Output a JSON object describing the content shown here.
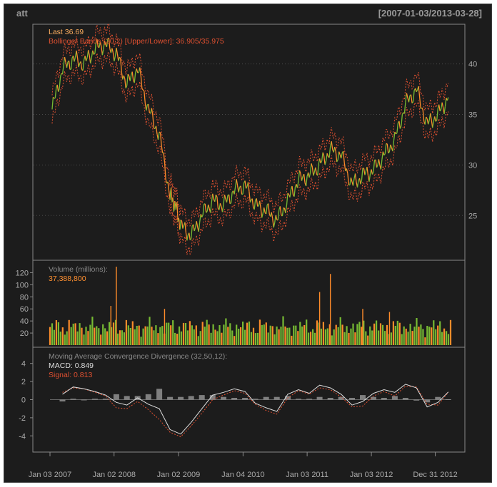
{
  "chart_data": {
    "type": "line",
    "title": "att",
    "date_range": "[2007-01-03/2013-03-28]",
    "x_ticks": [
      "Jan 03 2007",
      "Jan 02 2008",
      "Jan 02 2009",
      "Jan 04 2010",
      "Jan 03 2011",
      "Jan 03 2012",
      "Dec 31 2012"
    ],
    "price_panel": {
      "last_text": "Last 36.69",
      "bb_text": "Bollinger Bands (20,2) [Upper/Lower]: 36.905/35.975",
      "ylim": [
        21,
        43.5
      ],
      "y_ticks": [
        "25",
        "30",
        "35",
        "40"
      ],
      "grid": true,
      "series": [
        {
          "name": "Last",
          "dates": [
            "2007-01",
            "2007-03",
            "2007-05",
            "2007-07",
            "2007-09",
            "2007-11",
            "2008-01",
            "2008-03",
            "2008-05",
            "2008-07",
            "2008-09",
            "2008-11",
            "2008-12",
            "2009-01",
            "2009-03",
            "2009-05",
            "2009-07",
            "2009-09",
            "2009-11",
            "2010-01",
            "2010-03",
            "2010-05",
            "2010-07",
            "2010-09",
            "2010-11",
            "2011-01",
            "2011-03",
            "2011-05",
            "2011-07",
            "2011-09",
            "2011-11",
            "2012-01",
            "2012-03",
            "2012-05",
            "2012-07",
            "2012-09",
            "2012-11",
            "2013-01",
            "2013-03"
          ],
          "values": [
            35.5,
            39.5,
            40.5,
            40.0,
            41.5,
            42.0,
            41.0,
            38.0,
            39.5,
            35.5,
            33.0,
            27.0,
            26.0,
            24.0,
            23.0,
            25.0,
            26.5,
            26.0,
            27.5,
            28.0,
            26.0,
            25.5,
            24.5,
            26.5,
            28.5,
            29.0,
            30.0,
            31.5,
            31.0,
            28.0,
            29.0,
            29.5,
            31.0,
            32.5,
            36.0,
            37.5,
            34.0,
            35.0,
            36.69
          ]
        }
      ]
    },
    "volume_panel": {
      "label": "Volume (millions):",
      "value_text": "37,388,800",
      "ylim": [
        0,
        130
      ],
      "y_ticks": [
        "20",
        "40",
        "60",
        "80",
        "100",
        "120"
      ],
      "typical_value": 30,
      "spikes": [
        {
          "date": "2007-12",
          "value": 65
        },
        {
          "date": "2008-01",
          "value": 130
        },
        {
          "date": "2008-10",
          "value": 60
        },
        {
          "date": "2011-03",
          "value": 88
        },
        {
          "date": "2011-05",
          "value": 118
        },
        {
          "date": "2011-11",
          "value": 60
        },
        {
          "date": "2012-04",
          "value": 55
        }
      ]
    },
    "macd_panel": {
      "label": "Moving Average Convergence Divergence (32,50,12):",
      "macd_text": "MACD: 0.849",
      "signal_text": "Signal: 0.813",
      "ylim": [
        -5,
        5
      ],
      "y_ticks": [
        "4",
        "2",
        "0",
        "-2",
        "-4"
      ],
      "dates": [
        "2007-03",
        "2007-05",
        "2007-07",
        "2007-09",
        "2007-11",
        "2008-01",
        "2008-03",
        "2008-05",
        "2008-07",
        "2008-09",
        "2008-11",
        "2009-01",
        "2009-03",
        "2009-05",
        "2009-07",
        "2009-09",
        "2009-11",
        "2010-01",
        "2010-03",
        "2010-05",
        "2010-07",
        "2010-09",
        "2010-11",
        "2011-01",
        "2011-03",
        "2011-05",
        "2011-07",
        "2011-09",
        "2011-11",
        "2012-01",
        "2012-03",
        "2012-05",
        "2012-07",
        "2012-09",
        "2012-11",
        "2013-01",
        "2013-03"
      ],
      "macd": [
        0.6,
        1.4,
        1.2,
        0.9,
        0.5,
        -0.3,
        -0.6,
        0.2,
        -0.5,
        -1.0,
        -3.3,
        -3.8,
        -2.5,
        -1.0,
        0.5,
        0.8,
        1.2,
        0.9,
        -0.4,
        -0.9,
        -1.3,
        0.6,
        1.1,
        0.7,
        1.6,
        1.3,
        0.6,
        -0.6,
        -0.2,
        0.7,
        1.1,
        0.8,
        1.7,
        1.3,
        -0.8,
        -0.3,
        0.849
      ],
      "signal": [
        0.8,
        1.3,
        1.2,
        0.8,
        0.4,
        -0.9,
        -1.0,
        -0.2,
        -1.1,
        -2.2,
        -3.6,
        -4.1,
        -2.9,
        -1.5,
        0.0,
        0.5,
        1.0,
        0.7,
        -0.5,
        -1.2,
        -1.6,
        0.2,
        1.0,
        0.6,
        1.3,
        1.1,
        0.3,
        -0.8,
        -0.7,
        0.4,
        0.9,
        0.4,
        1.5,
        1.4,
        -0.5,
        -0.6,
        0.813
      ]
    },
    "colors": {
      "background": "#1c1c1c",
      "up": "#77bb33",
      "down": "#ff8c2a",
      "bands": "#e05030",
      "signal": "#e05030",
      "macd": "#dddddd",
      "grid": "#4a4a4a",
      "text": "#bbbbbb",
      "title": "#999999",
      "volume_label": "#888888"
    }
  }
}
